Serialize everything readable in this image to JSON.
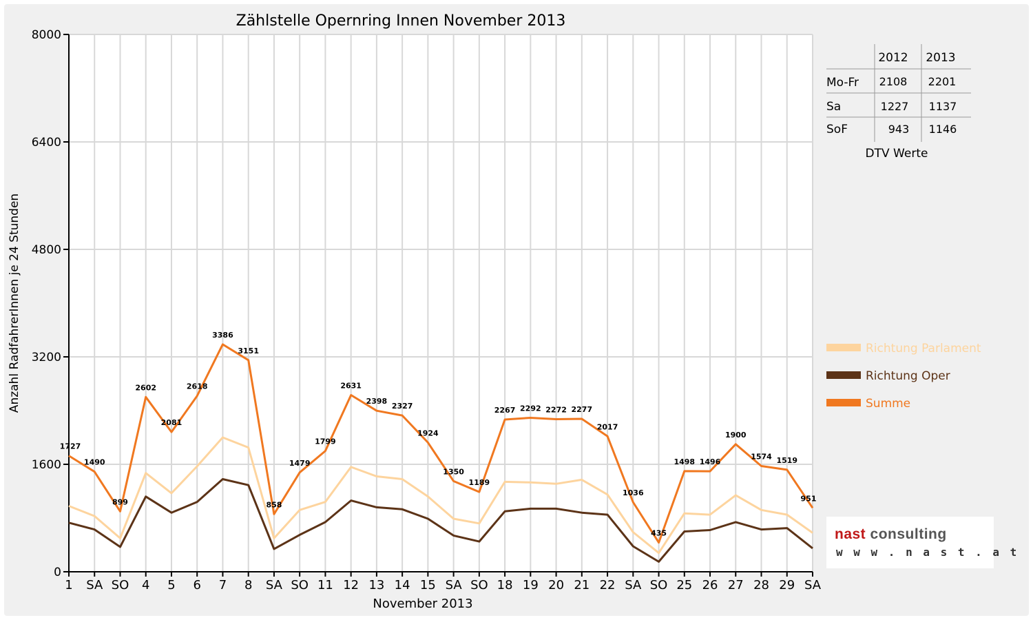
{
  "logo": {
    "name_part1": "nast",
    "name_part2": "consulting",
    "url": "w w w . n a s t . a t"
  },
  "dtv": {
    "caption": "DTV Werte",
    "years": [
      "2012",
      "2013"
    ],
    "rows": [
      {
        "label": "Mo-Fr",
        "v2012": "2108",
        "v2013": "2201"
      },
      {
        "label": "Sa",
        "v2012": "1227",
        "v2013": "1137"
      },
      {
        "label": "SoF",
        "v2012": "943",
        "v2013": "1146"
      }
    ]
  },
  "chart_data": {
    "type": "line",
    "title": "Zählstelle Opernring Innen November 2013",
    "xlabel": "November 2013",
    "ylabel": "Anzahl RadfahrerInnen je 24 Stunden",
    "ylim": [
      0,
      8000
    ],
    "yticks": [
      0,
      1600,
      3200,
      4800,
      6400,
      8000
    ],
    "grid": true,
    "legend_position": "right",
    "categories": [
      "1",
      "SA",
      "SO",
      "4",
      "5",
      "6",
      "7",
      "8",
      "SA",
      "SO",
      "11",
      "12",
      "13",
      "14",
      "15",
      "SA",
      "SO",
      "18",
      "19",
      "20",
      "21",
      "22",
      "SA",
      "SO",
      "25",
      "26",
      "27",
      "28",
      "29",
      "SA"
    ],
    "highlight_categories": [
      0,
      2,
      9,
      16,
      23
    ],
    "highlight_color": "#ff0000",
    "series": [
      {
        "name": "Richtung Parlament",
        "color": "#fdd49e",
        "values": [
          980,
          830,
          500,
          1470,
          1170,
          1570,
          2000,
          1850,
          500,
          920,
          1040,
          1560,
          1420,
          1380,
          1120,
          790,
          720,
          1340,
          1330,
          1310,
          1370,
          1150,
          590,
          280,
          870,
          850,
          1140,
          920,
          850,
          580
        ]
      },
      {
        "name": "Richtung Oper",
        "color": "#5c3317",
        "values": [
          730,
          630,
          370,
          1120,
          880,
          1040,
          1380,
          1290,
          340,
          550,
          740,
          1060,
          960,
          930,
          790,
          540,
          450,
          900,
          940,
          940,
          880,
          850,
          380,
          150,
          600,
          620,
          740,
          630,
          650,
          350
        ]
      },
      {
        "name": "Summe",
        "color": "#f07820",
        "values": [
          1727,
          1490,
          899,
          2602,
          2081,
          2618,
          3386,
          3151,
          858,
          1479,
          1799,
          2631,
          2398,
          2327,
          1924,
          1350,
          1189,
          2267,
          2292,
          2272,
          2277,
          2017,
          1036,
          435,
          1498,
          1496,
          1900,
          1574,
          1519,
          951
        ],
        "labels": [
          "1727",
          "1490",
          "899",
          "2602",
          "2081",
          "2618",
          "3386",
          "3151",
          "858",
          "1479",
          "1799",
          "2631",
          "2398",
          "2327",
          "1924",
          "1350",
          "1189",
          "2267",
          "2292",
          "2272",
          "2277",
          "2017",
          "1036",
          "435",
          "1498",
          "1496",
          "1900",
          "1574",
          "1519",
          "951"
        ]
      }
    ]
  }
}
